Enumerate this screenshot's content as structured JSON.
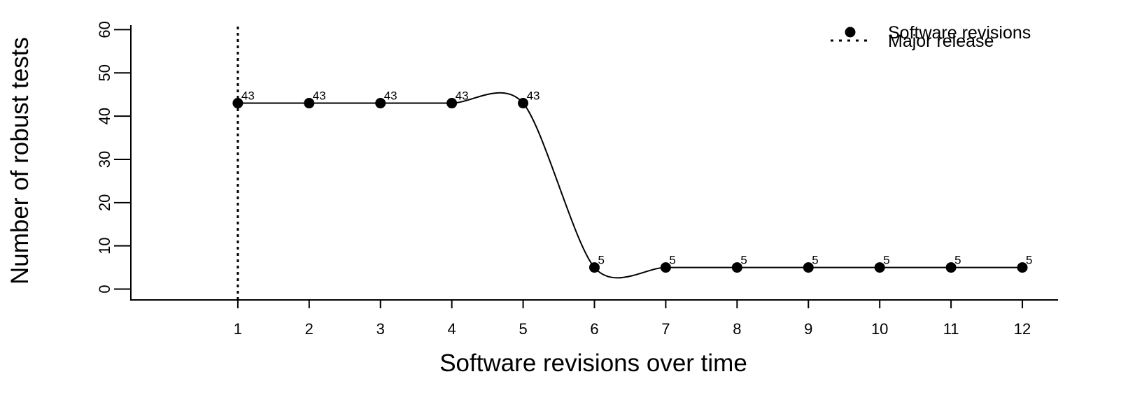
{
  "chart_data": {
    "type": "line",
    "title": "",
    "xlabel": "Software revisions over time",
    "ylabel": "Number of robust tests",
    "x": [
      1,
      2,
      3,
      4,
      5,
      6,
      7,
      8,
      9,
      10,
      11,
      12
    ],
    "x_tick_labels": [
      "1",
      "2",
      "3",
      "4",
      "5",
      "6",
      "7",
      "8",
      "9",
      "10",
      "11",
      "12"
    ],
    "xlim": [
      -0.5,
      12.5
    ],
    "ylim": [
      -2.5,
      62
    ],
    "y_ticks": [
      0,
      10,
      20,
      30,
      40,
      50,
      60
    ],
    "y_tick_labels": [
      "0",
      "10",
      "20",
      "30",
      "40",
      "50",
      "60"
    ],
    "grid": false,
    "series": [
      {
        "name": "Software revisions",
        "values": [
          43,
          43,
          43,
          43,
          43,
          5,
          5,
          5,
          5,
          5,
          5,
          5
        ],
        "data_labels": [
          "43",
          "43",
          "43",
          "43",
          "43",
          "5",
          "5",
          "5",
          "5",
          "5",
          "5",
          "5"
        ],
        "line": "smooth",
        "marker": "filled-circle",
        "color": "#000000"
      }
    ],
    "vertical_lines": [
      {
        "name": "Major release",
        "x": 1,
        "style": "dotted",
        "color": "#000000"
      }
    ],
    "legend": {
      "position": "top-right",
      "entries": [
        {
          "label": "Software revisions",
          "symbol": "filled-circle"
        },
        {
          "label": "Major release",
          "symbol": "dotted-line"
        }
      ]
    }
  }
}
